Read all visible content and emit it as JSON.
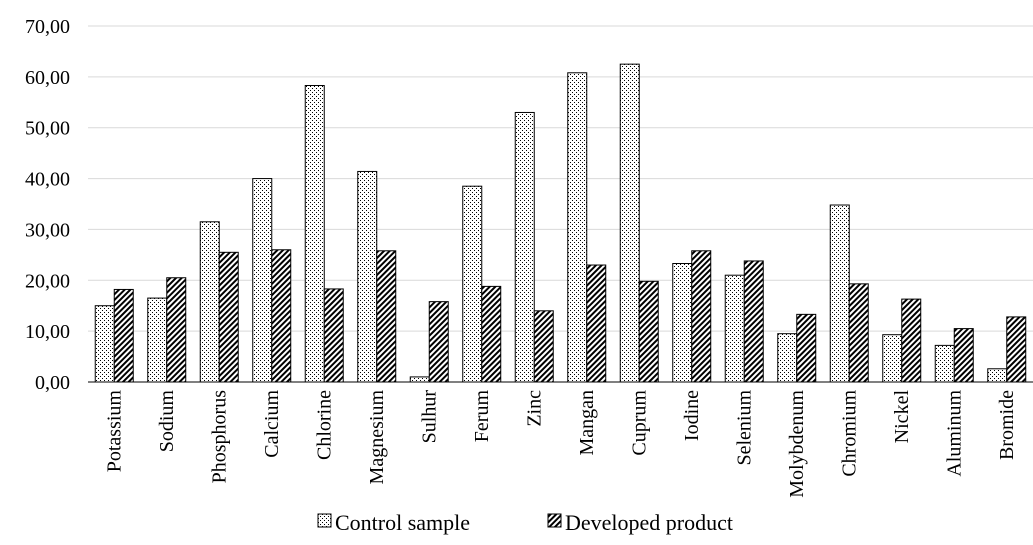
{
  "chart_data": {
    "type": "bar",
    "categories": [
      "Potassium",
      "Sodium",
      "Phosphorus",
      "Calcium",
      "Chlorine",
      "Magnesium",
      "Sulhur",
      "Ferum",
      "Zinc",
      "Mangan",
      "Cuprum",
      "Iodine",
      "Selenium",
      "Molybdenum",
      "Chromium",
      "Nickel",
      "Aluminum",
      "Bromide"
    ],
    "series": [
      {
        "name": "Control sample",
        "values": [
          15.0,
          16.5,
          31.5,
          40.0,
          58.3,
          41.4,
          1.0,
          38.5,
          53.0,
          60.8,
          62.5,
          23.3,
          21.0,
          9.5,
          34.8,
          9.3,
          7.2,
          2.6
        ]
      },
      {
        "name": "Developed product",
        "values": [
          18.2,
          20.5,
          25.5,
          26.0,
          18.3,
          25.8,
          15.8,
          18.8,
          14.0,
          23.0,
          19.8,
          25.8,
          23.8,
          13.3,
          19.3,
          16.3,
          10.5,
          12.8
        ]
      }
    ],
    "ylim": [
      0,
      70
    ],
    "yticks": [
      "0,00",
      "10,00",
      "20,00",
      "30,00",
      "40,00",
      "50,00",
      "60,00",
      "70,00"
    ],
    "grid": true,
    "legend_position": "bottom",
    "colors": {
      "grid": "#d9d9d9",
      "bar_edge": "#000000"
    }
  }
}
